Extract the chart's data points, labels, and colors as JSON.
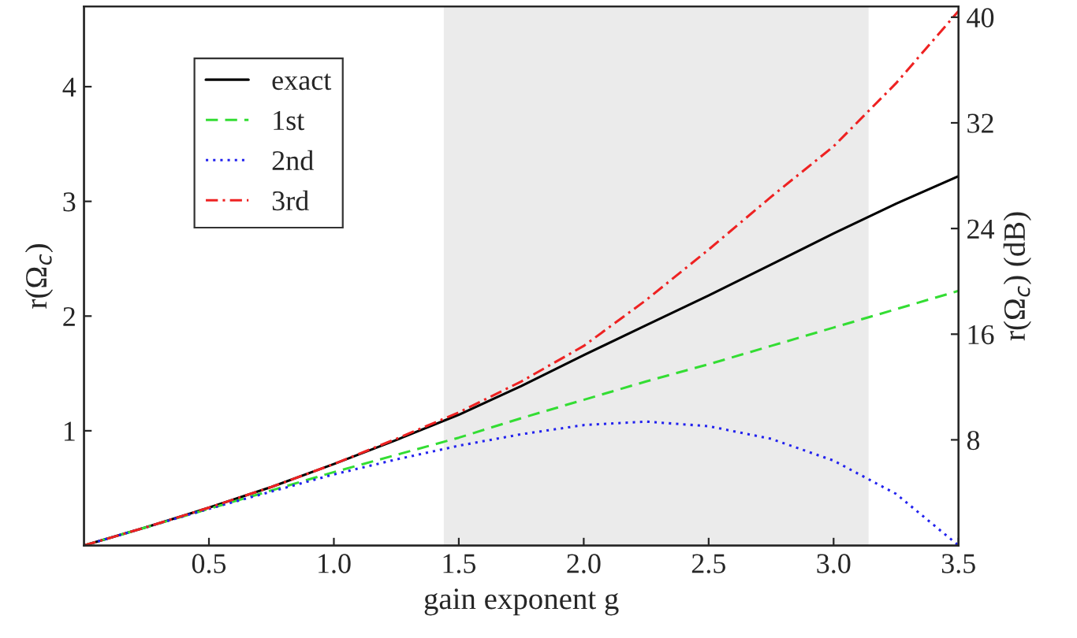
{
  "chart_data": {
    "type": "line",
    "xlabel": "gain exponent g",
    "ylabel": "r(Ω$_{c}$)",
    "y2label": "r(Ω$_{c}$) (dB)",
    "x": [
      0,
      0.25,
      0.5,
      0.75,
      1.0,
      1.25,
      1.5,
      1.75,
      2.0,
      2.25,
      2.5,
      2.75,
      3.0,
      3.25,
      3.5
    ],
    "series": [
      {
        "name": "exact",
        "color": "#000000",
        "line_style": "solid",
        "values": [
          0,
          0.16,
          0.33,
          0.51,
          0.71,
          0.92,
          1.14,
          1.39,
          1.66,
          1.92,
          2.18,
          2.45,
          2.72,
          2.98,
          3.22
        ]
      },
      {
        "name": "1st",
        "color": "#33dd33",
        "line_style": "dashed",
        "values": [
          0,
          0.16,
          0.32,
          0.48,
          0.64,
          0.79,
          0.94,
          1.11,
          1.27,
          1.43,
          1.58,
          1.74,
          1.9,
          2.06,
          2.22
        ]
      },
      {
        "name": "2nd",
        "color": "#2222ee",
        "line_style": "dotted",
        "values": [
          0,
          0.16,
          0.32,
          0.47,
          0.62,
          0.75,
          0.87,
          0.97,
          1.05,
          1.08,
          1.04,
          0.93,
          0.74,
          0.45,
          0.0
        ]
      },
      {
        "name": "3rd",
        "color": "#ee2222",
        "line_style": "dashdot",
        "values": [
          0,
          0.16,
          0.33,
          0.51,
          0.71,
          0.93,
          1.16,
          1.43,
          1.74,
          2.14,
          2.58,
          3.04,
          3.48,
          4.03,
          4.66
        ]
      }
    ],
    "xlim": [
      0,
      3.5
    ],
    "xticks": [
      0.5,
      {
        "value": 1,
        "label": "1.0"
      },
      1.5,
      {
        "value": 2,
        "label": "2.0"
      },
      2.5,
      {
        "value": 3,
        "label": "3.0"
      },
      3.5
    ],
    "ylim": [
      0,
      4.7
    ],
    "yticks": [
      1,
      2,
      3,
      4
    ],
    "y2lim": [
      0,
      40.82
    ],
    "y2ticks": [
      8,
      16,
      24,
      32,
      40
    ],
    "bands": [
      {
        "axis": "x",
        "from": 1.44,
        "to": 3.14,
        "color": "#ebebeb"
      }
    ],
    "grid": false,
    "legend": "top left"
  }
}
